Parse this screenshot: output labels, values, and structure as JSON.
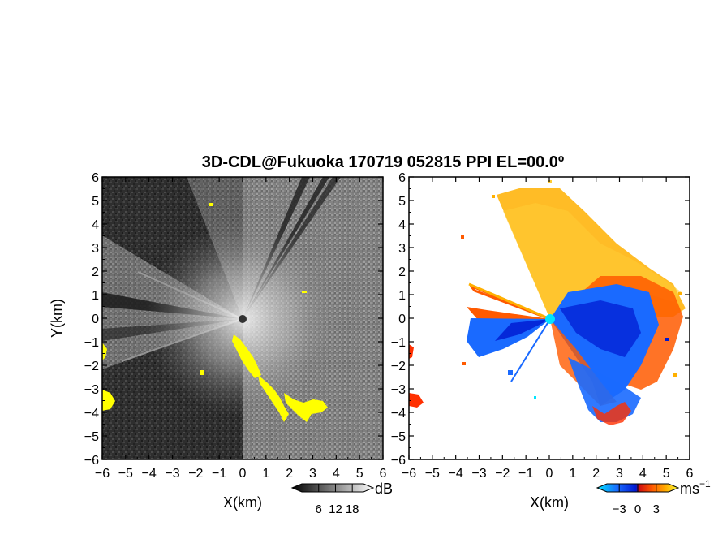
{
  "chart_data": {
    "type": "heatmap",
    "title": "3D-CDL@Fukuoka 170719 052815 PPI EL=00.0º",
    "panels": [
      {
        "id": "snr",
        "xlabel": "X(km)",
        "ylabel": "Y(km)",
        "xlim": [
          -6,
          6
        ],
        "ylim": [
          -6,
          6
        ],
        "x_ticks": [
          "−6",
          "−5",
          "−4",
          "−3",
          "−2",
          "−1",
          "0",
          "1",
          "2",
          "3",
          "4",
          "5",
          "6"
        ],
        "y_ticks": [
          "−6",
          "−5",
          "−4",
          "−3",
          "−2",
          "−1",
          "0",
          "1",
          "2",
          "3",
          "4",
          "5",
          "6"
        ],
        "colorbar": {
          "unit": "dB",
          "tick_labels": [
            "6",
            "12",
            "18"
          ],
          "range": [
            0,
            22
          ],
          "colors": [
            "#000000",
            "#ffffff"
          ]
        },
        "highlight_color": "#ffff00"
      },
      {
        "id": "velocity",
        "xlabel": "X(km)",
        "xlim": [
          -6,
          6
        ],
        "ylim": [
          -6,
          6
        ],
        "x_ticks": [
          "−6",
          "−5",
          "−4",
          "−3",
          "−2",
          "−1",
          "0",
          "1",
          "2",
          "3",
          "4",
          "5",
          "6"
        ],
        "colorbar": {
          "unit": "ms",
          "unit_superscript": "−1",
          "tick_labels": [
            "−3",
            "0",
            "3"
          ],
          "range": [
            -5,
            5
          ],
          "colors": [
            "#00e5ff",
            "#1a6aff",
            "#0018d0",
            "#d01010",
            "#ff5a00",
            "#ffb000",
            "#ffff40"
          ]
        }
      }
    ]
  }
}
